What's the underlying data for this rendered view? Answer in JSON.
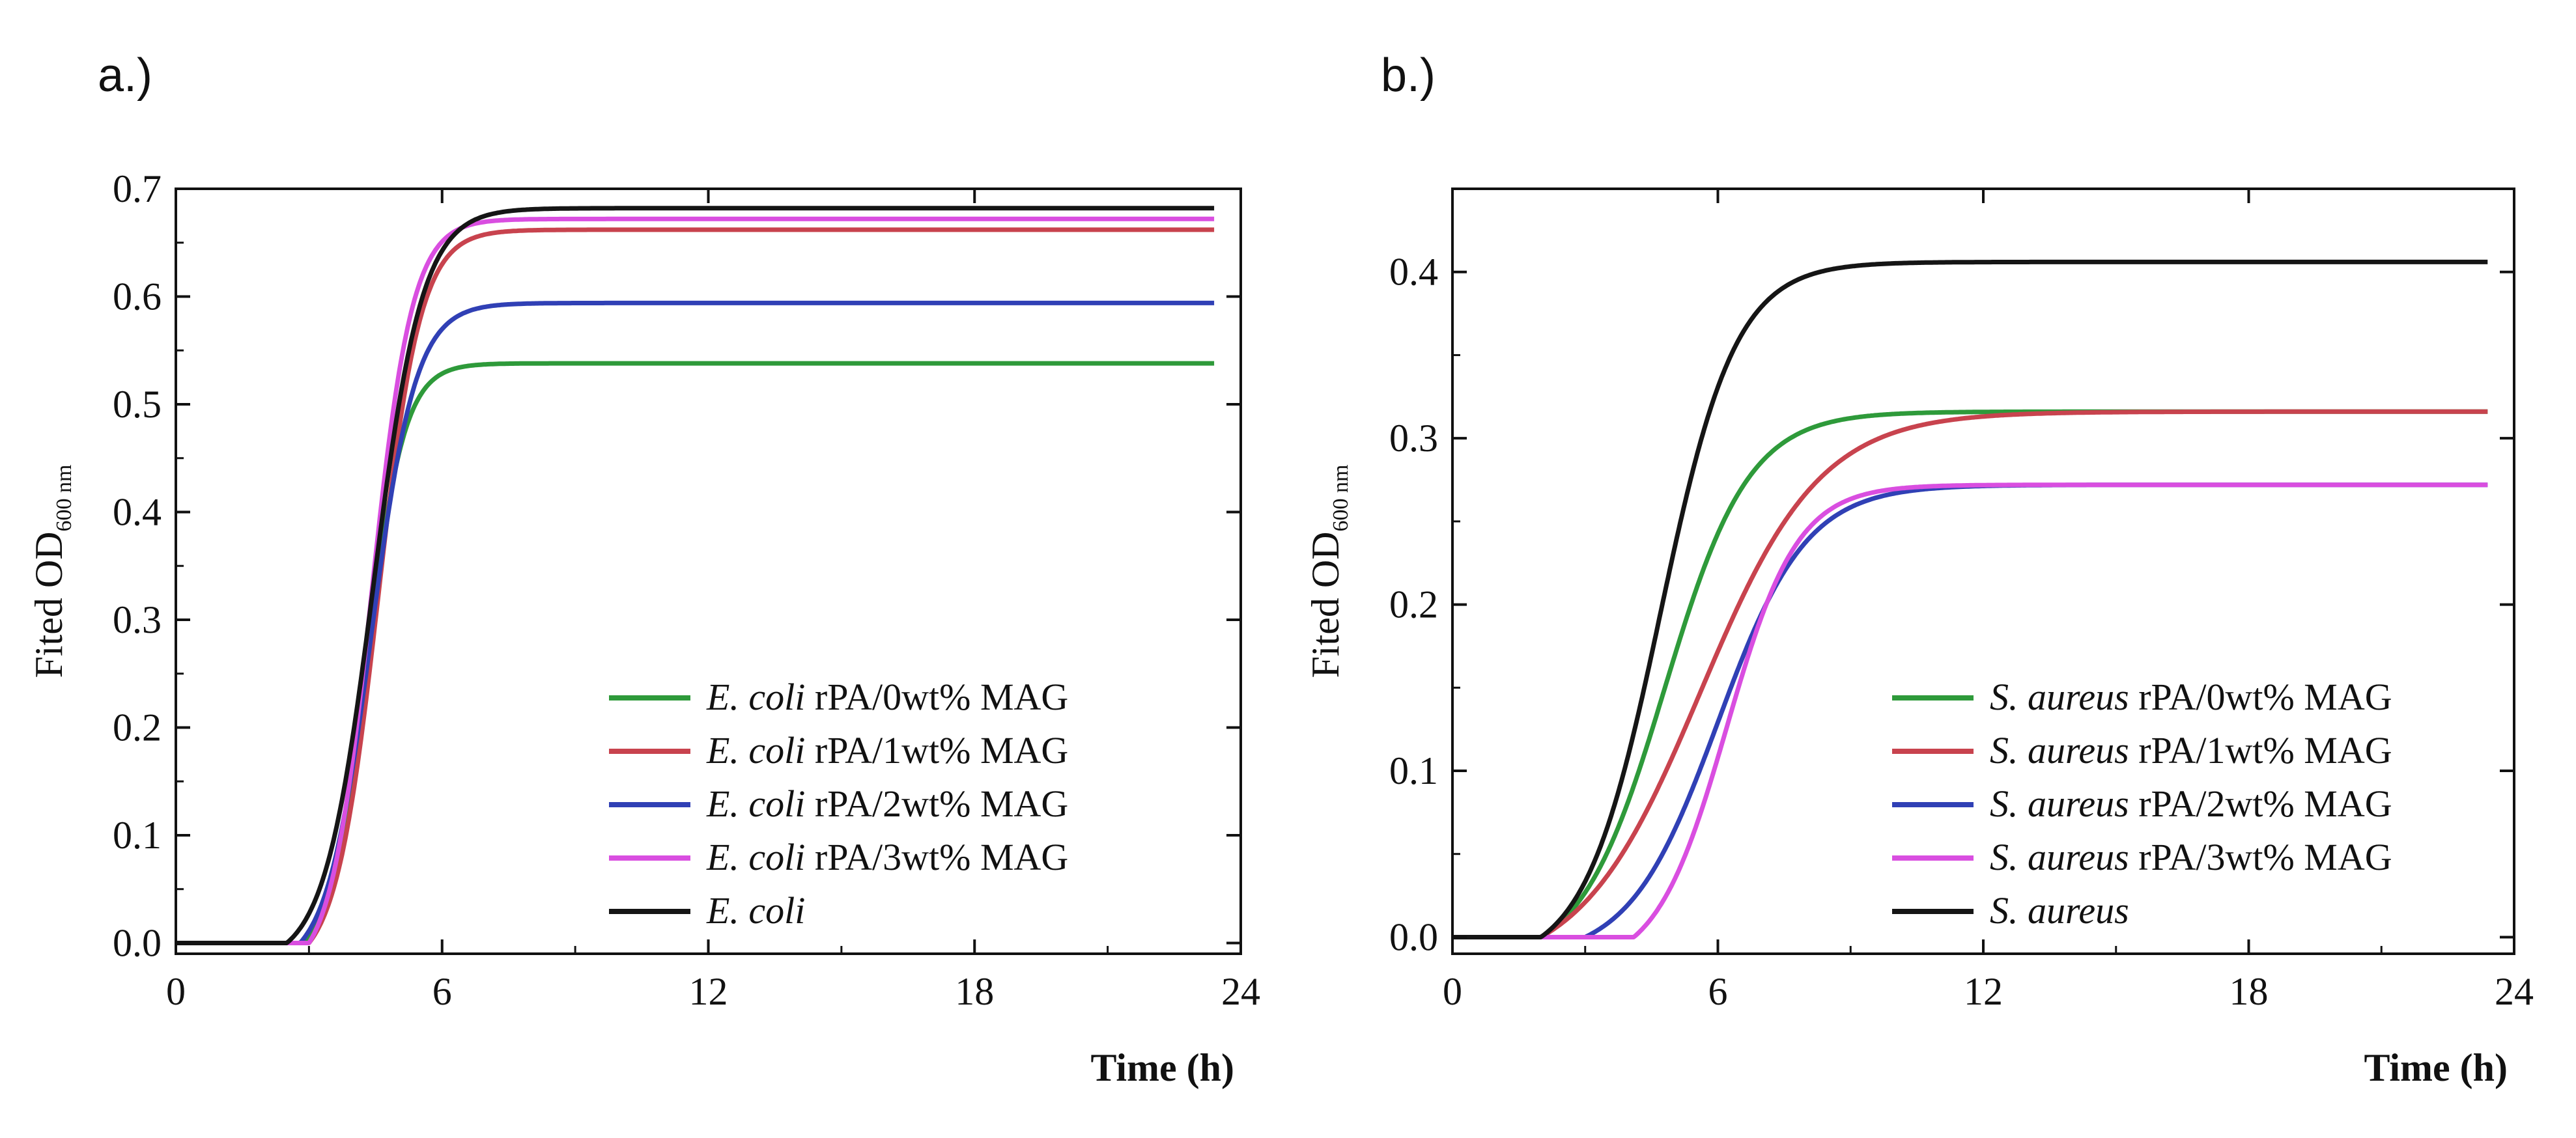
{
  "chart_data": [
    {
      "type": "line",
      "panel_label": "a.)",
      "xlabel": "Time (h)",
      "ylabel": "Fited OD",
      "ylabel_sub": "600 nm",
      "xlim": [
        0,
        24
      ],
      "ylim": [
        -0.01,
        0.7
      ],
      "xticks": [
        0,
        6,
        12,
        18,
        24
      ],
      "yticks": [
        0.0,
        0.1,
        0.2,
        0.3,
        0.4,
        0.5,
        0.6,
        0.7
      ],
      "ytick_labels": [
        "0.0",
        "0.1",
        "0.2",
        "0.3",
        "0.4",
        "0.5",
        "0.6",
        "0.7"
      ],
      "legend_position": "lower-right",
      "series": [
        {
          "italic": "E. coli",
          "rest": " rPA/0wt% MAG",
          "color": "#2e9a3a",
          "max": 0.538,
          "lag": 2.9,
          "t50": 4.3,
          "sigma": 0.42,
          "baseline": 0.0,
          "t_end": 23.4
        },
        {
          "italic": "E. coli",
          "rest": " rPA/1wt% MAG",
          "color": "#c8434e",
          "max": 0.662,
          "lag": 3.0,
          "t50": 4.55,
          "sigma": 0.48,
          "baseline": 0.0,
          "t_end": 23.4
        },
        {
          "italic": "E. coli",
          "rest": " rPA/2wt% MAG",
          "color": "#3040b5",
          "max": 0.594,
          "lag": 2.8,
          "t50": 4.4,
          "sigma": 0.5,
          "baseline": 0.0,
          "t_end": 23.4
        },
        {
          "italic": "E. coli",
          "rest": " rPA/3wt% MAG",
          "color": "#d94ee0",
          "max": 0.672,
          "lag": 3.0,
          "t50": 4.4,
          "sigma": 0.46,
          "baseline": 0.0,
          "t_end": 23.4
        },
        {
          "italic": "E. coli",
          "rest": "",
          "color": "#151515",
          "max": 0.682,
          "lag": 2.5,
          "t50": 4.45,
          "sigma": 0.55,
          "baseline": 0.0,
          "t_end": 23.4
        }
      ]
    },
    {
      "type": "line",
      "panel_label": "b.)",
      "xlabel": "Time (h)",
      "ylabel": "Fited OD",
      "ylabel_sub": "600 nm",
      "xlim": [
        0,
        24
      ],
      "ylim": [
        -0.01,
        0.45
      ],
      "xticks": [
        0,
        6,
        12,
        18,
        24
      ],
      "yticks": [
        0.0,
        0.1,
        0.2,
        0.3,
        0.4
      ],
      "ytick_labels": [
        "0.0",
        "0.1",
        "0.2",
        "0.3",
        "0.4"
      ],
      "legend_position": "lower-right",
      "series": [
        {
          "italic": "S. aureus",
          "rest": " rPA/0wt% MAG",
          "color": "#2e9a3a",
          "max": 0.316,
          "lag": 2.0,
          "t50": 4.8,
          "sigma": 0.95,
          "baseline": 0.0,
          "t_end": 23.4
        },
        {
          "italic": "S. aureus",
          "rest": " rPA/1wt% MAG",
          "color": "#c8434e",
          "max": 0.316,
          "lag": 2.0,
          "t50": 5.6,
          "sigma": 1.35,
          "baseline": 0.0,
          "t_end": 23.4
        },
        {
          "italic": "S. aureus",
          "rest": " rPA/2wt% MAG",
          "color": "#3040b5",
          "max": 0.272,
          "lag": 3.0,
          "t50": 6.0,
          "sigma": 1.0,
          "baseline": 0.0,
          "t_end": 23.4
        },
        {
          "italic": "S. aureus",
          "rest": " rPA/3wt% MAG",
          "color": "#d94ee0",
          "max": 0.272,
          "lag": 4.1,
          "t50": 6.2,
          "sigma": 0.8,
          "baseline": 0.0,
          "t_end": 23.4
        },
        {
          "italic": "S. aureus",
          "rest": "",
          "color": "#151515",
          "max": 0.406,
          "lag": 2.0,
          "t50": 4.7,
          "sigma": 0.85,
          "baseline": 0.0,
          "t_end": 23.4
        }
      ]
    }
  ]
}
